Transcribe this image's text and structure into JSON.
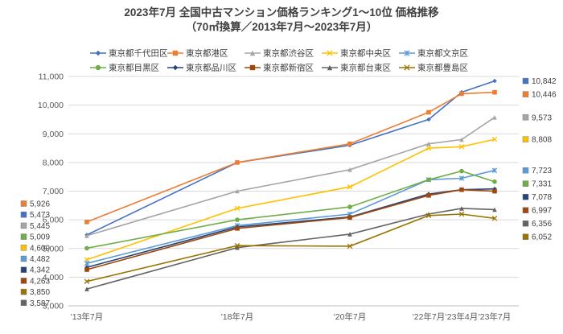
{
  "title": "2023年7月 全国中古マンション価格ランキング1～10位 価格推移",
  "subtitle": "（70㎡換算／2013年7月～2023年7月）",
  "chart_data": {
    "type": "line",
    "x": [
      "'13年7月",
      "'18年7月",
      "'20年7月",
      "'22年7月",
      "'23年4月",
      "'23年7月"
    ],
    "ylim": [
      3000,
      11000
    ],
    "ytick_step": 1000,
    "yticks": [
      "3,000",
      "4,000",
      "5,000",
      "6,000",
      "7,000",
      "8,000",
      "9,000",
      "10,000",
      "11,000"
    ],
    "grid": true,
    "legend_position": "top",
    "series": [
      {
        "name": "東京都千代田区",
        "color": "#4472C4",
        "marker": "diamond",
        "values": [
          5473,
          8000,
          8600,
          9500,
          10450,
          10842
        ]
      },
      {
        "name": "東京都港区",
        "color": "#ED7D31",
        "marker": "square",
        "values": [
          5926,
          8000,
          8650,
          9750,
          10400,
          10446
        ]
      },
      {
        "name": "東京都渋谷区",
        "color": "#A5A5A5",
        "marker": "triangle",
        "values": [
          5445,
          7000,
          7750,
          8650,
          8800,
          9573
        ]
      },
      {
        "name": "東京都中央区",
        "color": "#FFC000",
        "marker": "x",
        "values": [
          4609,
          6400,
          7150,
          8500,
          8550,
          8808
        ]
      },
      {
        "name": "東京都文京区",
        "color": "#5B9BD5",
        "marker": "asterisk",
        "values": [
          4482,
          5800,
          6200,
          7400,
          7450,
          7723
        ]
      },
      {
        "name": "東京都目黒区",
        "color": "#70AD47",
        "marker": "circle",
        "values": [
          5009,
          6000,
          6450,
          7400,
          7700,
          7331
        ]
      },
      {
        "name": "東京都品川区",
        "color": "#264478",
        "marker": "diamond",
        "values": [
          4342,
          5750,
          6100,
          6900,
          7050,
          7078
        ]
      },
      {
        "name": "東京都新宿区",
        "color": "#9E480E",
        "marker": "square",
        "values": [
          4263,
          5700,
          6080,
          6850,
          7050,
          6997
        ]
      },
      {
        "name": "東京都台東区",
        "color": "#636363",
        "marker": "triangle",
        "values": [
          3587,
          5030,
          5500,
          6200,
          6400,
          6356
        ]
      },
      {
        "name": "東京都豊島区",
        "color": "#997300",
        "marker": "x",
        "values": [
          3850,
          5100,
          5080,
          6150,
          6200,
          6052
        ]
      }
    ],
    "start_labels": [
      {
        "text": "5,926",
        "color": "#ED7D31"
      },
      {
        "text": "5,473",
        "color": "#4472C4"
      },
      {
        "text": "5,445",
        "color": "#A5A5A5"
      },
      {
        "text": "5,009",
        "color": "#70AD47"
      },
      {
        "text": "4,609",
        "color": "#FFC000"
      },
      {
        "text": "4,482",
        "color": "#5B9BD5"
      },
      {
        "text": "4,342",
        "color": "#264478"
      },
      {
        "text": "4,263",
        "color": "#9E480E"
      },
      {
        "text": "3,850",
        "color": "#997300"
      },
      {
        "text": "3,587",
        "color": "#636363"
      }
    ],
    "end_labels": [
      {
        "text": "10,842",
        "value": 10842,
        "color": "#4472C4"
      },
      {
        "text": "10,446",
        "value": 10446,
        "color": "#ED7D31"
      },
      {
        "text": "9,573",
        "value": 9573,
        "color": "#A5A5A5"
      },
      {
        "text": "8,808",
        "value": 8808,
        "color": "#FFC000"
      },
      {
        "text": "7,723",
        "value": 7723,
        "color": "#5B9BD5"
      },
      {
        "text": "7,331",
        "value": 7331,
        "color": "#70AD47"
      },
      {
        "text": "7,078",
        "value": 7078,
        "color": "#264478"
      },
      {
        "text": "6,997",
        "value": 6997,
        "color": "#9E480E"
      },
      {
        "text": "6,356",
        "value": 6356,
        "color": "#636363"
      },
      {
        "text": "6,052",
        "value": 6052,
        "color": "#997300"
      }
    ]
  }
}
